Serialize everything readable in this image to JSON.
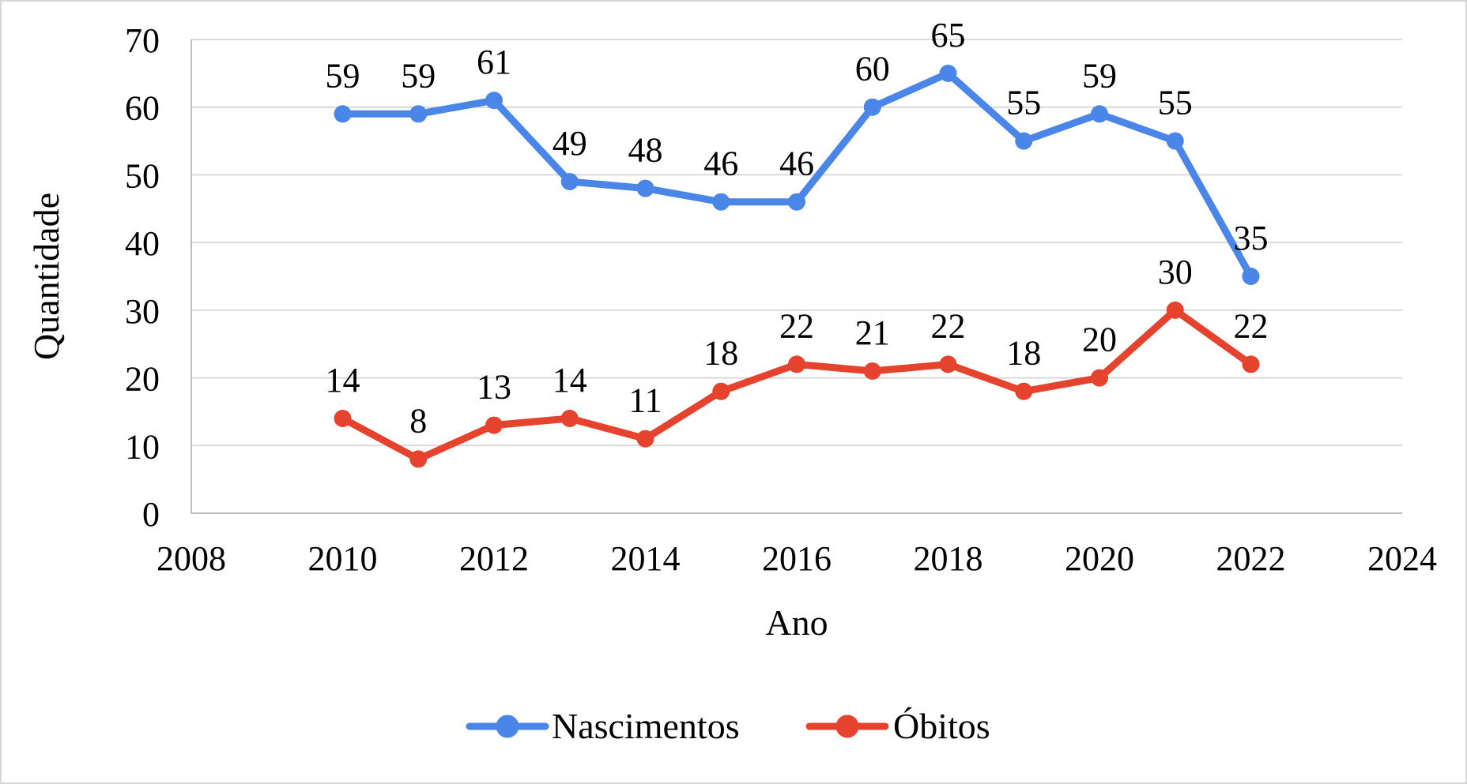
{
  "figure": {
    "xlabel": "Ano",
    "ylabel": "Quantidade"
  },
  "chart_data": {
    "type": "line",
    "title": "",
    "xlabel": "Ano",
    "ylabel": "Quantidade",
    "x": [
      2010,
      2011,
      2012,
      2013,
      2014,
      2015,
      2016,
      2017,
      2018,
      2019,
      2020,
      2021,
      2022
    ],
    "series": [
      {
        "name": "Nascimentos",
        "color": "#4a86e8",
        "values": [
          59,
          59,
          61,
          49,
          48,
          46,
          46,
          60,
          65,
          55,
          59,
          55,
          35
        ]
      },
      {
        "name": "Óbitos",
        "color": "#e5432e",
        "values": [
          14,
          8,
          13,
          14,
          11,
          18,
          22,
          21,
          22,
          18,
          20,
          30,
          22
        ]
      }
    ],
    "xlim": [
      2008,
      2024
    ],
    "ylim": [
      0,
      70
    ],
    "x_ticks": [
      2008,
      2010,
      2012,
      2014,
      2016,
      2018,
      2020,
      2022,
      2024
    ],
    "y_ticks": [
      0,
      10,
      20,
      30,
      40,
      50,
      60,
      70
    ],
    "grid": "horizontal",
    "data_labels": true,
    "legend_position": "bottom"
  },
  "colors": {
    "grid": "#d9d9d9",
    "axis": "#bfbfbf",
    "label_text": "#000000",
    "background": "#ffffff"
  }
}
